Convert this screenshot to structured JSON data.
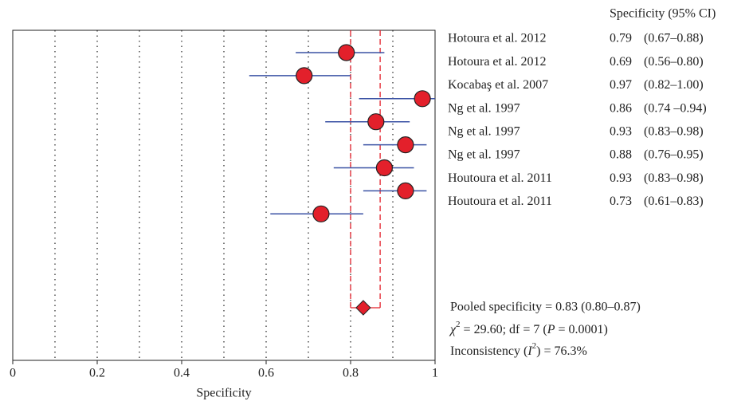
{
  "chart_data": {
    "type": "forest",
    "header": "Specificity (95% CI)",
    "x_label": "Specificity",
    "studies": [
      "Hotoura et al. 2012",
      "Hotoura et al. 2012",
      "Kocabaş et al. 2007",
      "Ng et al. 1997",
      "Ng et al. 1997",
      "Ng et al. 1997",
      "Houtoura et al. 2011",
      "Houtoura et al. 2011"
    ],
    "estimates": [
      0.79,
      0.69,
      0.97,
      0.86,
      0.93,
      0.88,
      0.93,
      0.73
    ],
    "ci_lower": [
      0.67,
      0.56,
      0.82,
      0.74,
      0.83,
      0.76,
      0.83,
      0.61
    ],
    "ci_upper": [
      0.88,
      0.8,
      1.0,
      0.94,
      0.98,
      0.95,
      0.98,
      0.83
    ],
    "ci_labels": [
      "(0.67–0.88)",
      "(0.56–0.80)",
      "(0.82–1.00)",
      "(0.74 –0.94)",
      "(0.83–0.98)",
      "(0.76–0.95)",
      "(0.83–0.98)",
      "(0.61–0.83)"
    ],
    "pooled": {
      "estimate": 0.83,
      "lower": 0.8,
      "upper": 0.87,
      "label": "Pooled specificity = 0.83 (0.80–0.87)"
    },
    "chi_text": [
      "χ",
      "2",
      " = 29.60; df = 7 (",
      "P",
      " = 0.0001)"
    ],
    "inconsistency_text": [
      "Inconsistency (",
      "I",
      "2",
      ") = 76.3%"
    ],
    "xlim": [
      0,
      1
    ],
    "xticks": [
      0,
      0.2,
      0.4,
      0.6,
      0.8,
      1
    ],
    "grid_lines": [
      0.1,
      0.2,
      0.3,
      0.4,
      0.5,
      0.6,
      0.7,
      0.8,
      0.9
    ],
    "marker_color": "#e3202b",
    "ci_color": "#3a52a4",
    "pooled_color": "#e3202b"
  }
}
